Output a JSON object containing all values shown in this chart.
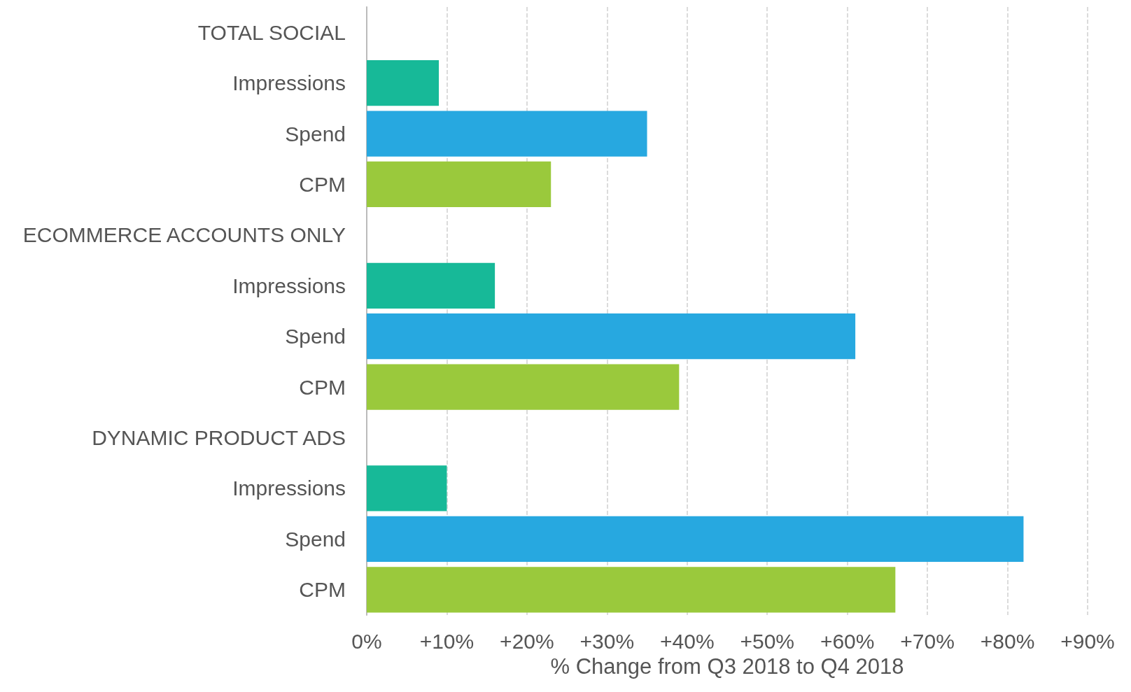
{
  "chart_data": {
    "type": "bar",
    "orientation": "horizontal",
    "xlabel": "% Change from Q3 2018 to Q4 2018",
    "categories": [
      "TOTAL SOCIAL",
      "Impressions",
      "Spend",
      "CPM",
      "ECOMMERCE ACCOUNTS ONLY",
      "Impressions",
      "Spend",
      "CPM",
      "DYNAMIC PRODUCT ADS",
      "Impressions",
      "Spend",
      "CPM"
    ],
    "values": [
      null,
      9,
      35,
      23,
      null,
      16,
      61,
      39,
      null,
      10,
      82,
      66
    ],
    "colors": [
      "#17b998",
      "#17b998",
      "#27a8e0",
      "#9ac93c",
      "#17b998",
      "#17b998",
      "#27a8e0",
      "#9ac93c",
      "#17b998",
      "#17b998",
      "#27a8e0",
      "#9ac93c"
    ],
    "xlim": [
      0,
      90
    ],
    "xticks": [
      {
        "value": 0,
        "label": "0%"
      },
      {
        "value": 10,
        "label": "+10%"
      },
      {
        "value": 20,
        "label": "+20%"
      },
      {
        "value": 30,
        "label": "+30%"
      },
      {
        "value": 40,
        "label": "+40%"
      },
      {
        "value": 50,
        "label": "+50%"
      },
      {
        "value": 60,
        "label": "+60%"
      },
      {
        "value": 70,
        "label": "+70%"
      },
      {
        "value": 80,
        "label": "+80%"
      },
      {
        "value": 90,
        "label": "+90%"
      }
    ],
    "grid": "x"
  }
}
